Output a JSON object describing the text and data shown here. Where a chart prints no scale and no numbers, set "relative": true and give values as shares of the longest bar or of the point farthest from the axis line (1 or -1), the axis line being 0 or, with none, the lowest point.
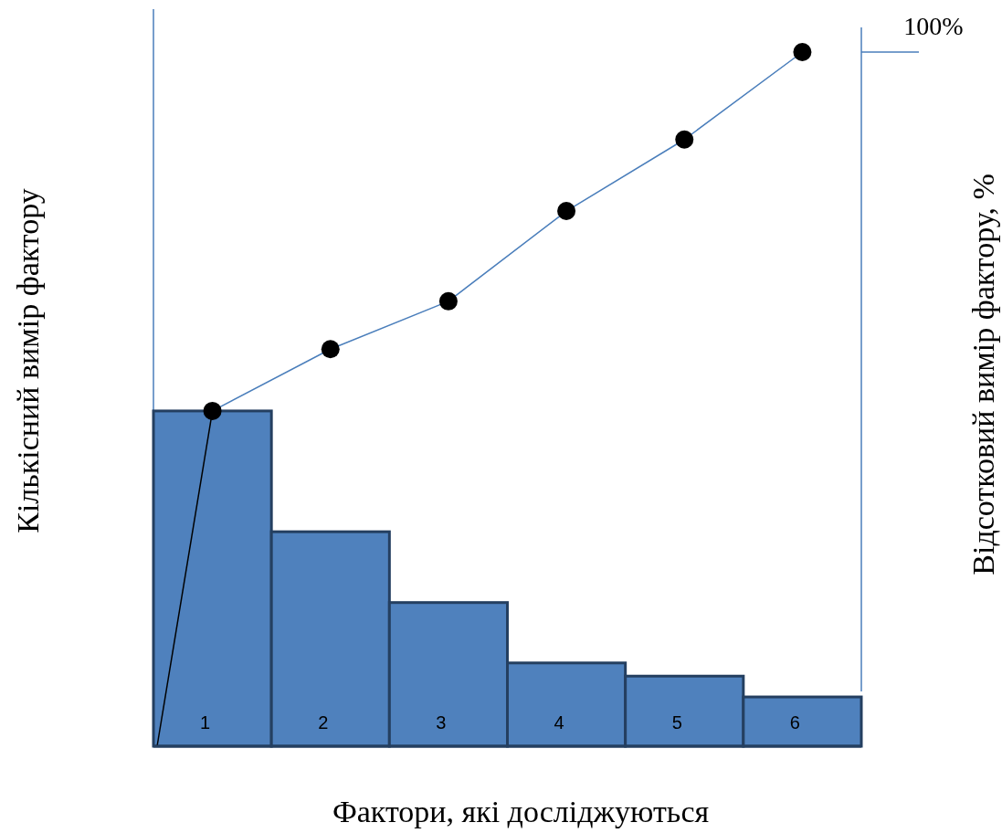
{
  "chart_data": {
    "type": "bar",
    "relative": true,
    "categories": [
      "1",
      "2",
      "3",
      "4",
      "5",
      "6"
    ],
    "xlabel": "Фактори, які досліджуються",
    "ylabel": "Кількісний вимір фактору",
    "y2label": "Відсотковий вимір фактору, %",
    "annotations": [
      "100%"
    ],
    "series": [
      {
        "color": "#4f81bd",
        "values": [
          0.483,
          0.309,
          0.207,
          0.12,
          0.101,
          0.071
        ]
      },
      {
        "type": "line",
        "color": "#4a7ebb",
        "marker": "circle",
        "values": [
          0.483,
          0.572,
          0.641,
          0.771,
          0.874,
          1
        ]
      }
    ]
  }
}
